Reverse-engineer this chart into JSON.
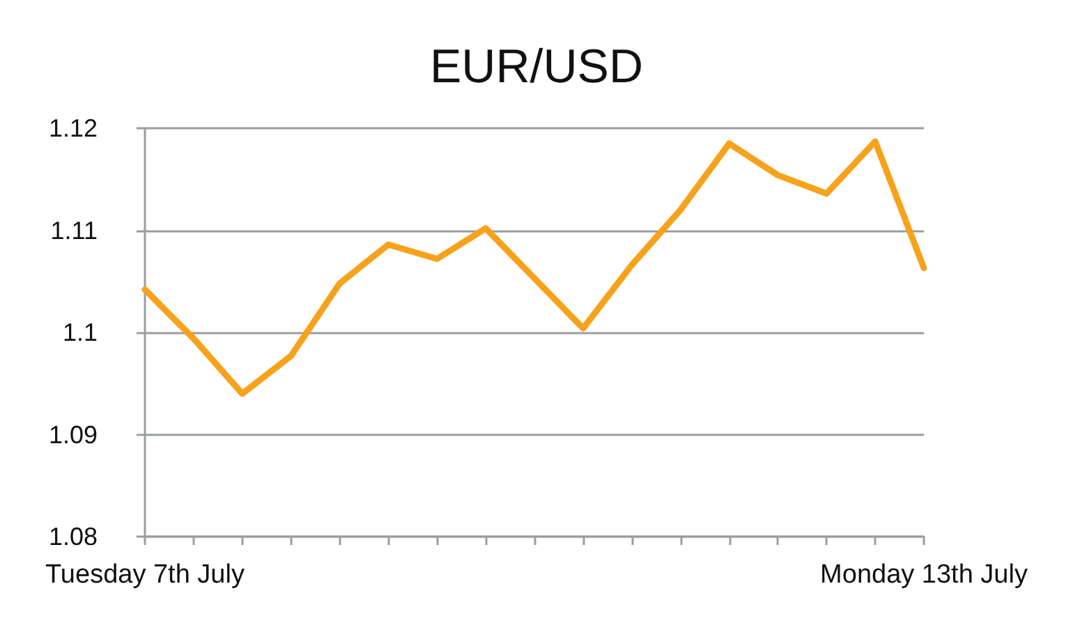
{
  "chart_data": {
    "type": "line",
    "title": "EUR/USD",
    "categories": [
      "Tuesday 7th July",
      null,
      null,
      null,
      null,
      null,
      null,
      null,
      null,
      null,
      null,
      null,
      null,
      null,
      null,
      null,
      "Monday 13th July"
    ],
    "series": [
      {
        "color": "#f7a21b",
        "values": [
          1.1042,
          1.0994,
          1.094,
          1.0977,
          1.1048,
          1.1086,
          1.1072,
          1.1102,
          1.1053,
          1.1004,
          1.1066,
          1.112,
          1.1185,
          1.1154,
          1.1136,
          1.1187,
          1.1063
        ]
      }
    ],
    "ylim": [
      1.08,
      1.12
    ],
    "yticks": [
      1.08,
      1.09,
      1.1,
      1.11,
      1.12
    ],
    "grid": "y",
    "marker": "none",
    "line_style": "solid"
  }
}
